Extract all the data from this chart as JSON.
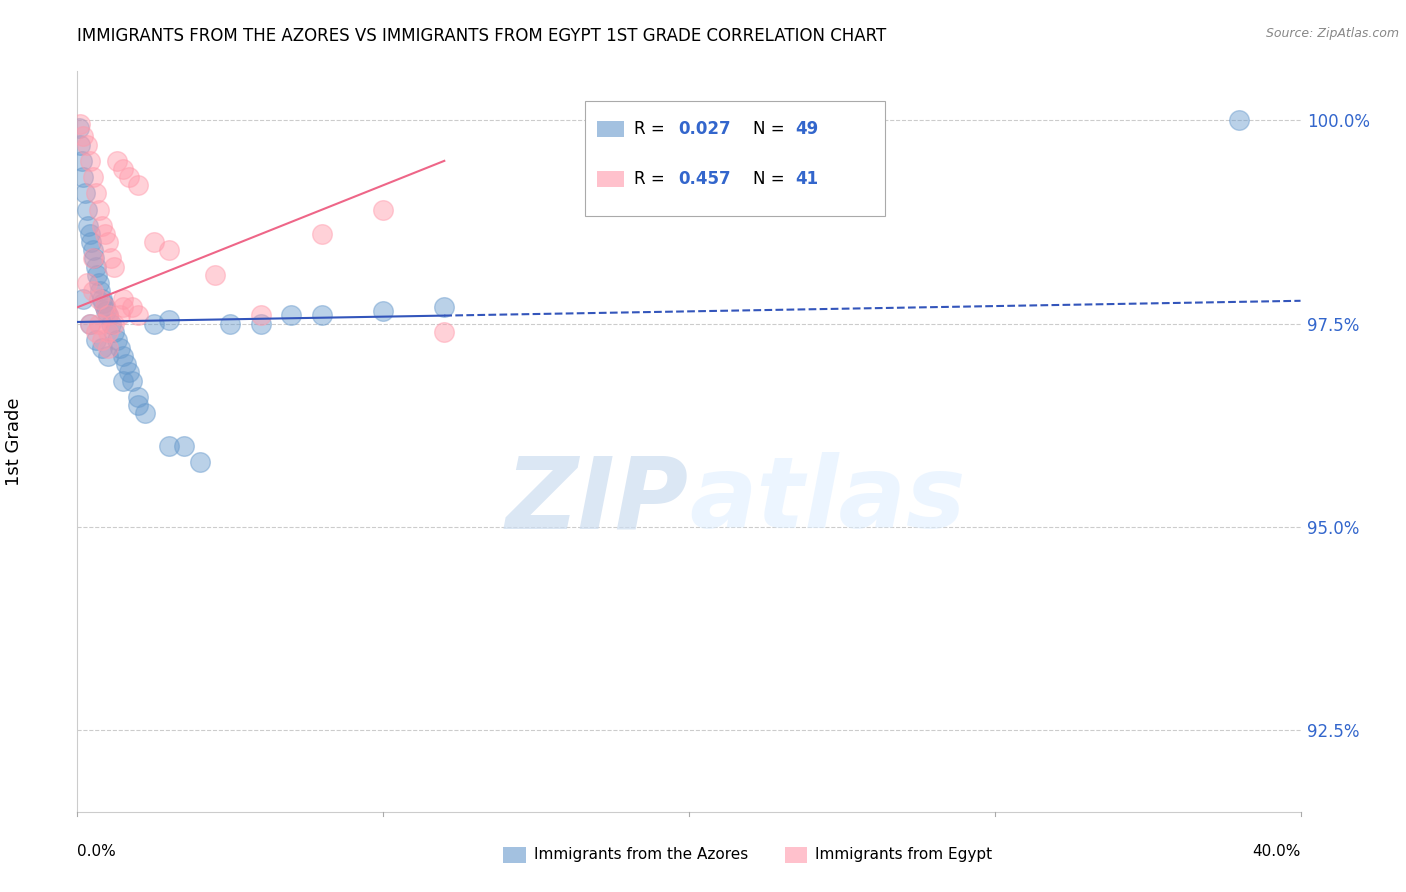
{
  "title": "IMMIGRANTS FROM THE AZORES VS IMMIGRANTS FROM EGYPT 1ST GRADE CORRELATION CHART",
  "source_text": "Source: ZipAtlas.com",
  "ylabel": "1st Grade",
  "x_min": 0.0,
  "x_max": 40.0,
  "y_min": 91.5,
  "y_max": 100.6,
  "y_ticks": [
    92.5,
    95.0,
    97.5,
    100.0
  ],
  "blue_R": 0.027,
  "blue_N": 49,
  "pink_R": 0.457,
  "pink_N": 41,
  "blue_color": "#6699CC",
  "pink_color": "#FF99AA",
  "blue_label": "Immigrants from the Azores",
  "pink_label": "Immigrants from Egypt",
  "watermark_zip": "ZIP",
  "watermark_atlas": "atlas",
  "blue_scatter_x": [
    0.05,
    0.1,
    0.15,
    0.2,
    0.25,
    0.3,
    0.35,
    0.4,
    0.45,
    0.5,
    0.55,
    0.6,
    0.65,
    0.7,
    0.75,
    0.8,
    0.85,
    0.9,
    0.95,
    1.0,
    1.1,
    1.2,
    1.3,
    1.4,
    1.5,
    1.6,
    1.7,
    1.8,
    2.0,
    2.2,
    2.5,
    3.0,
    3.5,
    4.0,
    5.0,
    6.0,
    7.0,
    8.0,
    10.0,
    12.0,
    0.2,
    0.4,
    0.6,
    0.8,
    1.0,
    1.5,
    2.0,
    3.0,
    38.0
  ],
  "blue_scatter_y": [
    99.9,
    99.7,
    99.5,
    99.3,
    99.1,
    98.9,
    98.7,
    98.6,
    98.5,
    98.4,
    98.3,
    98.2,
    98.1,
    98.0,
    97.9,
    97.8,
    97.75,
    97.7,
    97.65,
    97.6,
    97.5,
    97.4,
    97.3,
    97.2,
    97.1,
    97.0,
    96.9,
    96.8,
    96.6,
    96.4,
    97.5,
    97.55,
    96.0,
    95.8,
    97.5,
    97.5,
    97.6,
    97.6,
    97.65,
    97.7,
    97.8,
    97.5,
    97.3,
    97.2,
    97.1,
    96.8,
    96.5,
    96.0,
    100.0
  ],
  "pink_scatter_x": [
    0.1,
    0.2,
    0.3,
    0.4,
    0.5,
    0.6,
    0.7,
    0.8,
    0.9,
    1.0,
    1.1,
    1.2,
    1.3,
    1.5,
    1.7,
    2.0,
    2.5,
    0.3,
    0.5,
    0.7,
    0.9,
    1.0,
    1.2,
    1.5,
    2.0,
    0.4,
    0.6,
    0.8,
    1.0,
    1.4,
    1.8,
    0.5,
    0.7,
    1.0,
    1.5,
    3.0,
    4.5,
    6.0,
    8.0,
    10.0,
    12.0
  ],
  "pink_scatter_y": [
    99.95,
    99.8,
    99.7,
    99.5,
    99.3,
    99.1,
    98.9,
    98.7,
    98.6,
    98.5,
    98.3,
    98.2,
    99.5,
    99.4,
    99.3,
    99.2,
    98.5,
    98.0,
    97.9,
    97.8,
    97.7,
    97.6,
    97.5,
    97.7,
    97.6,
    97.5,
    97.4,
    97.3,
    97.2,
    97.6,
    97.7,
    98.3,
    97.5,
    97.4,
    97.8,
    98.4,
    98.1,
    97.6,
    98.6,
    98.9,
    97.4
  ],
  "blue_trend_x0": 0.0,
  "blue_trend_x1": 40.0,
  "blue_trend_y0": 97.52,
  "blue_trend_y1": 97.78,
  "blue_solid_x1": 12.0,
  "pink_trend_x0": 0.0,
  "pink_trend_x1": 12.0,
  "pink_trend_y0": 97.7,
  "pink_trend_y1": 99.5
}
